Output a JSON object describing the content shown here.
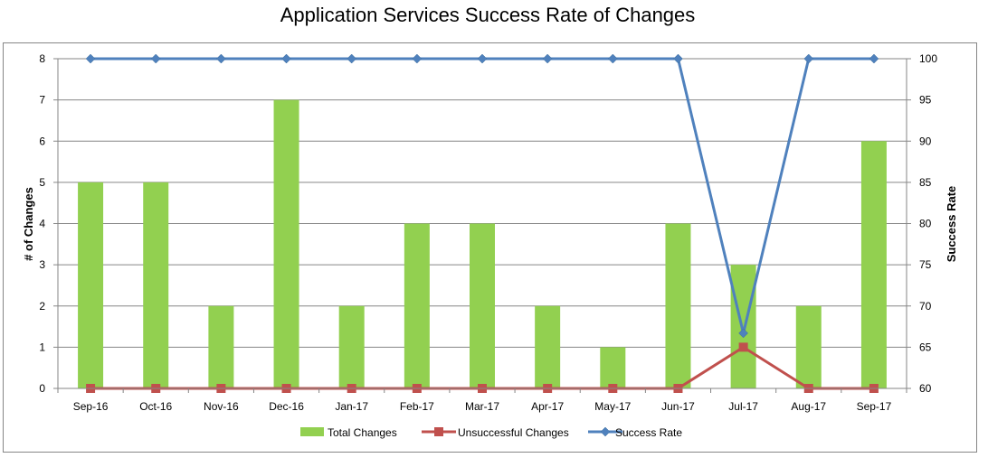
{
  "chart_data": {
    "type": "bar",
    "title": "Application Services Success Rate of Changes",
    "categories": [
      "Sep-16",
      "Oct-16",
      "Nov-16",
      "Dec-16",
      "Jan-17",
      "Feb-17",
      "Mar-17",
      "Apr-17",
      "May-17",
      "Jun-17",
      "Jul-17",
      "Aug-17",
      "Sep-17"
    ],
    "ylabel": "# of Changes",
    "y2label": "Success Rate",
    "ylim": [
      0,
      8
    ],
    "y2lim": [
      60,
      100
    ],
    "yticks": [
      "0",
      "1",
      "2",
      "3",
      "4",
      "5",
      "6",
      "7",
      "8"
    ],
    "y2ticks": [
      "60",
      "65",
      "70",
      "75",
      "80",
      "85",
      "90",
      "95",
      "100"
    ],
    "grid": true,
    "legend_position": "bottom",
    "series": [
      {
        "name": "Total Changes",
        "type": "bar",
        "axis": "left",
        "color": "#92d050",
        "values": [
          5,
          5,
          2,
          7,
          2,
          4,
          4,
          2,
          1,
          4,
          3,
          2,
          6
        ]
      },
      {
        "name": "Unsuccessful Changes",
        "type": "line",
        "axis": "left",
        "color": "#c0504d",
        "marker": "square",
        "values": [
          0,
          0,
          0,
          0,
          0,
          0,
          0,
          0,
          0,
          0,
          1,
          0,
          0
        ]
      },
      {
        "name": "Success Rate",
        "type": "line",
        "axis": "right",
        "color": "#4f81bd",
        "marker": "diamond",
        "values": [
          100,
          100,
          100,
          100,
          100,
          100,
          100,
          100,
          100,
          100,
          66.7,
          100,
          100
        ]
      }
    ]
  }
}
